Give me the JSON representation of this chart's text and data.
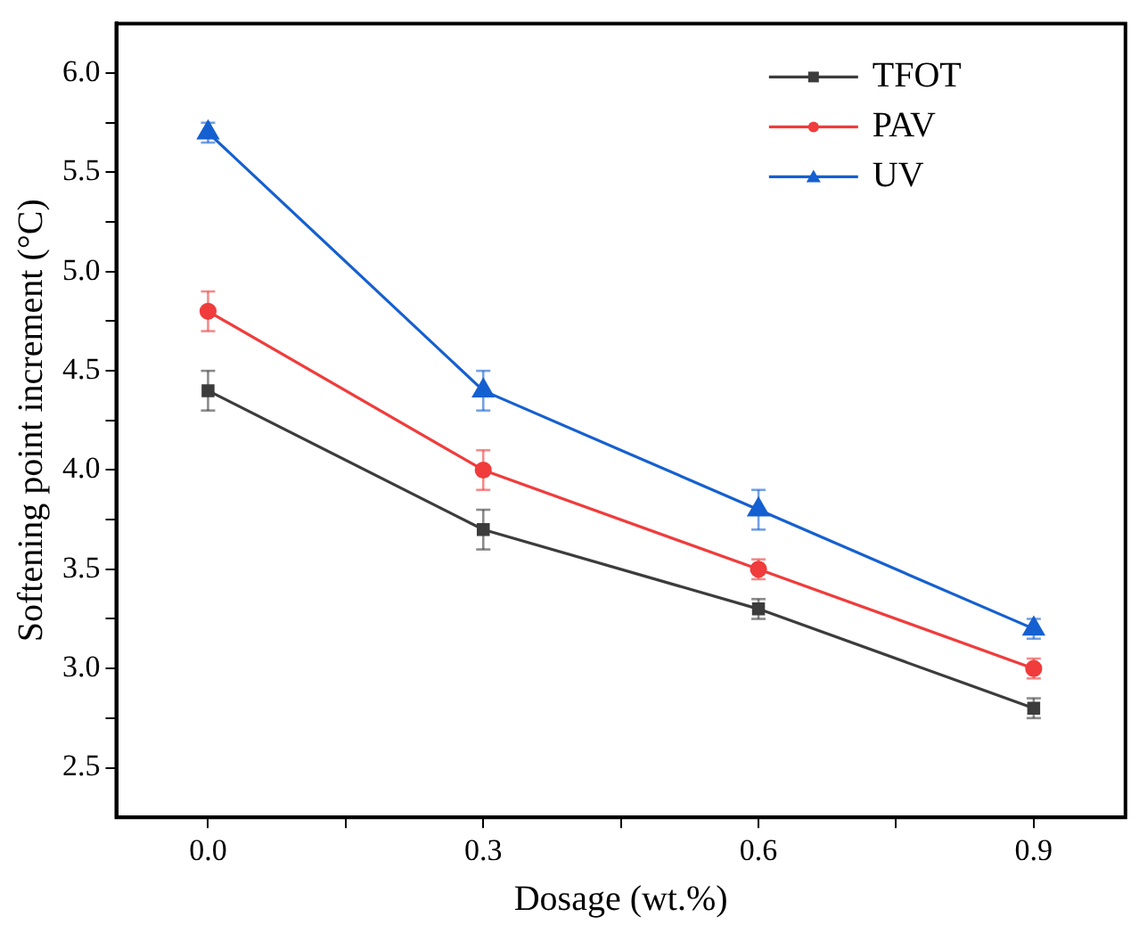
{
  "chart_data": {
    "type": "line",
    "xlabel": "Dosage (wt.%)",
    "ylabel": "Softening point increment (°C)",
    "x": [
      0,
      0.3,
      0.6,
      0.9
    ],
    "xlim": [
      -0.1,
      1.0
    ],
    "xticks": [
      {
        "value": 0,
        "label": "0.0"
      },
      {
        "value": 0.15,
        "label": null
      },
      {
        "value": 0.3,
        "label": "0.3"
      },
      {
        "value": 0.45,
        "label": null
      },
      {
        "value": 0.6,
        "label": "0.6"
      },
      {
        "value": 0.75,
        "label": null
      },
      {
        "value": 0.9,
        "label": "0.9"
      }
    ],
    "ylim": [
      2.25,
      6.25
    ],
    "yticks": [
      {
        "value": 2.5,
        "label": "2.5"
      },
      {
        "value": 2.75,
        "label": null
      },
      {
        "value": 3,
        "label": "3.0"
      },
      {
        "value": 3.25,
        "label": null
      },
      {
        "value": 3.5,
        "label": "3.5"
      },
      {
        "value": 3.75,
        "label": null
      },
      {
        "value": 4,
        "label": "4.0"
      },
      {
        "value": 4.25,
        "label": null
      },
      {
        "value": 4.5,
        "label": "4.5"
      },
      {
        "value": 4.75,
        "label": null
      },
      {
        "value": 5,
        "label": "5.0"
      },
      {
        "value": 5.25,
        "label": null
      },
      {
        "value": 5.5,
        "label": "5.5"
      },
      {
        "value": 5.75,
        "label": null
      },
      {
        "value": 6,
        "label": "6.0"
      }
    ],
    "grid": false,
    "legend": "top right",
    "line_style": "solid",
    "series": [
      {
        "name": "TFOT",
        "color": "#3c3c3c",
        "marker": "square",
        "values": [
          4.4,
          3.7,
          3.3,
          2.8
        ],
        "errors": [
          0.1,
          0.1,
          0.05,
          0.05
        ]
      },
      {
        "name": "PAV",
        "color": "#f03c3c",
        "marker": "circle",
        "values": [
          4.8,
          4.0,
          3.5,
          3.0
        ],
        "errors": [
          0.1,
          0.1,
          0.05,
          0.05
        ]
      },
      {
        "name": "UV",
        "color": "#1560d0",
        "marker": "triangle",
        "values": [
          5.7,
          4.4,
          3.8,
          3.2
        ],
        "errors": [
          0.05,
          0.1,
          0.1,
          0.05
        ]
      }
    ]
  }
}
